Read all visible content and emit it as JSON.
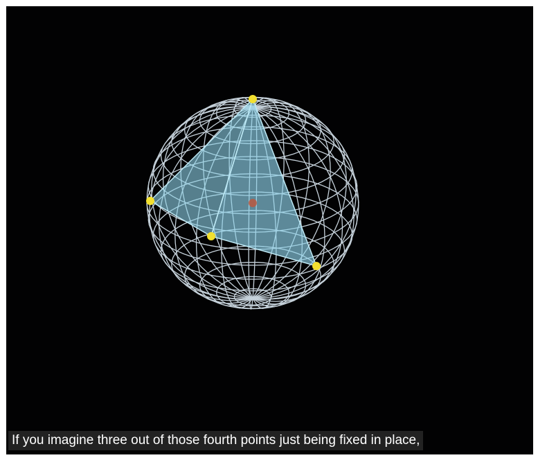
{
  "caption": "If you imagine three out of those fourth points just being fixed in place,"
}
